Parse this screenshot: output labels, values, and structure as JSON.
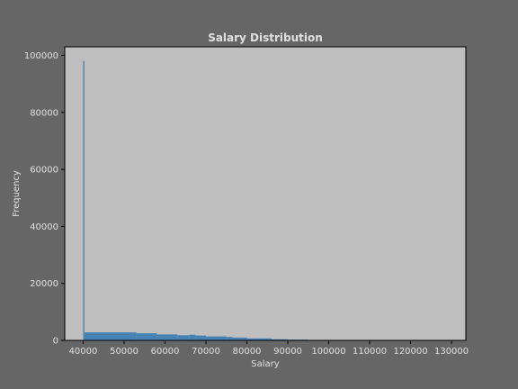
{
  "chart_data": {
    "type": "bar",
    "title": "Salary Distribution",
    "xlabel": "Salary",
    "ylabel": "Frequency",
    "xlim": [
      35500,
      133500
    ],
    "ylim": [
      0,
      103000
    ],
    "x_ticks": [
      40000,
      50000,
      60000,
      70000,
      80000,
      90000,
      100000,
      110000,
      120000,
      130000
    ],
    "y_ticks": [
      0,
      20000,
      40000,
      60000,
      80000,
      100000
    ],
    "grid": false,
    "colors": {
      "background": "#666666",
      "plot_area": "#bfbfbf",
      "bar": "#4682b4",
      "text": "#e0e0e0"
    },
    "bins": [
      {
        "start": 40000,
        "end": 40300,
        "value": 98000
      },
      {
        "start": 40300,
        "end": 53000,
        "value": 2800
      },
      {
        "start": 53000,
        "end": 58000,
        "value": 2500
      },
      {
        "start": 58000,
        "end": 63000,
        "value": 2100
      },
      {
        "start": 63000,
        "end": 66000,
        "value": 1800
      },
      {
        "start": 66000,
        "end": 67500,
        "value": 2000
      },
      {
        "start": 67500,
        "end": 70000,
        "value": 1700
      },
      {
        "start": 70000,
        "end": 75000,
        "value": 1400
      },
      {
        "start": 75000,
        "end": 76500,
        "value": 1200
      },
      {
        "start": 76500,
        "end": 80000,
        "value": 1000
      },
      {
        "start": 80000,
        "end": 86000,
        "value": 700
      },
      {
        "start": 86000,
        "end": 90000,
        "value": 400
      },
      {
        "start": 90000,
        "end": 95000,
        "value": 250
      },
      {
        "start": 95000,
        "end": 100000,
        "value": 100
      },
      {
        "start": 100000,
        "end": 110000,
        "value": 40
      },
      {
        "start": 110000,
        "end": 130000,
        "value": 10
      }
    ]
  }
}
